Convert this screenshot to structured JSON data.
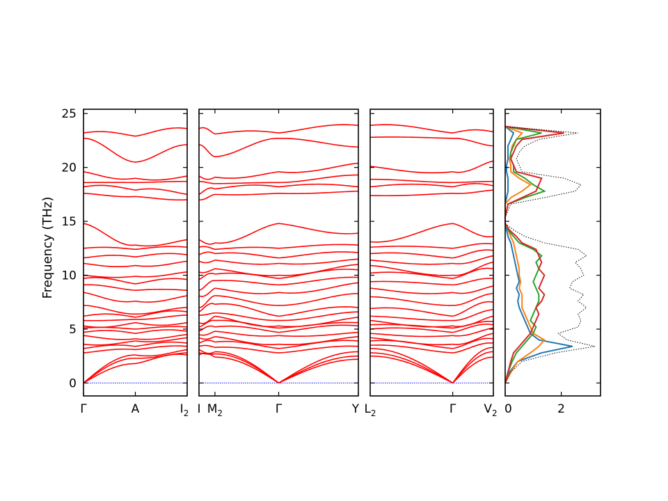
{
  "chart_data": {
    "type": "line",
    "ylabel": "Frequency (THz)",
    "ylim": [
      -1.2,
      25.4
    ],
    "yticks": [
      0,
      5,
      10,
      15,
      20,
      25
    ],
    "colors": {
      "band": "#ff0000",
      "zero_line": "#0000ff",
      "total_dos": "#000000",
      "pdos": [
        "#1f77b4",
        "#ff7f0e",
        "#2ca02c",
        "#d62728"
      ]
    },
    "band_panels": [
      {
        "segments": [
          {
            "from": "Γ",
            "to": "A",
            "tick_base": "Γ",
            "tick_sub": ""
          },
          {
            "from": "A",
            "to": "I",
            "tick_base": "A",
            "tick_sub": ""
          }
        ],
        "end_tick": {
          "base": "I",
          "sub": "2"
        },
        "band_values_at_labels": {
          "Γ": [
            0,
            0,
            0,
            2.8,
            3.2,
            3.6,
            4.4,
            4.7,
            5.1,
            5.3,
            5.8,
            6.2,
            7.2,
            8.4,
            9.1,
            9.7,
            10.0,
            11.1,
            11.6,
            12.5,
            14.8,
            17.6,
            18.2,
            18.6,
            19.6,
            22.7,
            23.2
          ],
          "A": [
            1.8,
            2.3,
            2.6,
            3.1,
            3.4,
            3.9,
            4.1,
            4.6,
            5.0,
            5.6,
            5.9,
            6.1,
            6.4,
            7.6,
            8.6,
            9.2,
            9.9,
            10.9,
            11.7,
            12.4,
            12.8,
            17.3,
            17.9,
            18.6,
            19.0,
            20.5,
            22.9
          ],
          "I": [
            2.6,
            2.8,
            3.1,
            3.4,
            3.7,
            4.2,
            4.5,
            4.8,
            5.2,
            5.6,
            6.3,
            6.6,
            7.0,
            8.1,
            8.6,
            9.6,
            10.3,
            11.3,
            11.9,
            12.6,
            13.3,
            17.0,
            17.5,
            18.7,
            19.2,
            22.1,
            23.6
          ]
        }
      },
      {
        "segments": [
          {
            "from": "I",
            "to": "M",
            "tick_base": "I",
            "tick_sub": ""
          },
          {
            "from": "M",
            "to": "Γ",
            "tick_base": "M",
            "tick_sub": "2"
          },
          {
            "from": "Γ",
            "to": "Y",
            "tick_base": "Γ",
            "tick_sub": ""
          }
        ],
        "end_tick": {
          "base": "Y",
          "sub": ""
        },
        "band_values_at_labels": {
          "I": [
            2.6,
            2.8,
            3.1,
            3.4,
            3.7,
            4.2,
            4.5,
            4.8,
            5.2,
            5.6,
            6.3,
            6.6,
            7.0,
            8.1,
            8.6,
            9.6,
            10.3,
            11.3,
            11.9,
            12.6,
            13.3,
            17.0,
            17.5,
            18.7,
            19.2,
            22.1,
            23.6
          ],
          "M": [
            2.4,
            2.7,
            2.9,
            3.3,
            3.8,
            4.3,
            4.8,
            5.2,
            5.8,
            6.2,
            6.5,
            7.3,
            8.1,
            8.8,
            9.5,
            10.1,
            10.6,
            11.4,
            12.0,
            12.4,
            13.0,
            17.5,
            18.0,
            18.5,
            19.1,
            21.0,
            23.1
          ],
          "Γ": [
            0,
            0,
            0,
            2.8,
            3.2,
            3.6,
            4.4,
            4.7,
            5.1,
            5.3,
            5.8,
            6.2,
            7.2,
            8.4,
            9.1,
            9.7,
            10.0,
            11.1,
            11.6,
            12.5,
            14.8,
            17.6,
            18.2,
            18.6,
            19.6,
            22.7,
            23.2
          ],
          "Y": [
            2.2,
            2.5,
            2.9,
            3.4,
            3.9,
            4.3,
            4.7,
            5.3,
            5.6,
            6.1,
            6.6,
            7.0,
            8.3,
            9.3,
            9.8,
            10.5,
            11.0,
            11.5,
            12.1,
            12.8,
            13.9,
            17.8,
            18.2,
            19.3,
            20.4,
            21.9,
            23.9
          ]
        }
      },
      {
        "segments": [
          {
            "from": "L",
            "to": "Γ",
            "tick_base": "L",
            "tick_sub": "2"
          },
          {
            "from": "Γ",
            "to": "V",
            "tick_base": "Γ",
            "tick_sub": ""
          }
        ],
        "end_tick": {
          "base": "V",
          "sub": "2"
        },
        "band_values_at_labels": {
          "L": [
            2.5,
            2.8,
            3.2,
            3.5,
            3.9,
            4.2,
            4.6,
            5.0,
            5.4,
            5.8,
            6.2,
            6.9,
            8.0,
            8.8,
            9.4,
            10.2,
            10.9,
            11.4,
            12.0,
            12.6,
            13.1,
            17.4,
            18.2,
            18.9,
            20.1,
            22.8,
            23.9
          ],
          "Γ": [
            0,
            0,
            0,
            2.8,
            3.2,
            3.6,
            4.4,
            4.7,
            5.1,
            5.3,
            5.8,
            6.2,
            7.2,
            8.4,
            9.1,
            9.7,
            10.0,
            11.1,
            11.6,
            12.5,
            14.8,
            17.6,
            18.2,
            18.6,
            19.6,
            22.7,
            23.2
          ],
          "V": [
            2.4,
            2.9,
            3.3,
            3.7,
            4.1,
            4.6,
            5.1,
            5.4,
            5.7,
            6.2,
            6.8,
            7.5,
            8.3,
            9.0,
            9.7,
            10.6,
            11.2,
            11.8,
            12.3,
            12.9,
            13.6,
            17.9,
            18.3,
            18.7,
            20.6,
            22.0,
            23.3
          ]
        }
      }
    ],
    "dos_panel": {
      "xlim": [
        0,
        3.4
      ],
      "xticks": [
        0,
        2
      ],
      "ylim": [
        -1.2,
        25.4
      ],
      "frequency_thz": [
        0.0,
        1.0,
        2.0,
        2.8,
        3.4,
        4.0,
        4.6,
        5.2,
        5.8,
        6.4,
        7.0,
        7.6,
        8.2,
        8.8,
        9.4,
        10.0,
        10.6,
        11.2,
        11.8,
        12.4,
        13.0,
        13.6,
        14.2,
        14.8,
        15.4,
        16.6,
        17.2,
        17.8,
        18.4,
        19.0,
        19.6,
        20.2,
        20.8,
        21.4,
        22.0,
        22.6,
        23.2,
        23.8
      ],
      "series": [
        {
          "values": [
            0.0,
            0.15,
            0.45,
            1.3,
            2.4,
            1.2,
            0.9,
            0.8,
            0.7,
            0.6,
            0.5,
            0.45,
            0.5,
            0.4,
            0.5,
            0.45,
            0.4,
            0.35,
            0.3,
            0.25,
            0.2,
            0.1,
            0.05,
            0.0,
            0.0,
            0.0,
            0.05,
            0.1,
            0.1,
            0.1,
            0.05,
            0.05,
            0.1,
            0.1,
            0.1,
            0.2,
            0.3,
            0.0
          ]
        },
        {
          "values": [
            0.0,
            0.2,
            0.45,
            0.9,
            1.2,
            1.4,
            1.0,
            0.9,
            0.8,
            0.7,
            0.6,
            0.6,
            0.6,
            0.5,
            0.55,
            0.5,
            0.5,
            0.45,
            0.4,
            0.35,
            0.3,
            0.2,
            0.1,
            0.0,
            0.0,
            0.0,
            0.2,
            0.6,
            0.9,
            0.5,
            0.2,
            0.2,
            0.15,
            0.2,
            0.25,
            0.4,
            0.6,
            0.0
          ]
        },
        {
          "values": [
            0.0,
            0.1,
            0.25,
            0.4,
            0.6,
            0.8,
            1.0,
            1.1,
            0.9,
            1.0,
            1.1,
            1.2,
            1.2,
            1.1,
            1.0,
            1.1,
            1.2,
            1.1,
            1.3,
            1.0,
            0.5,
            0.3,
            0.1,
            0.0,
            0.0,
            0.1,
            0.7,
            1.4,
            1.0,
            0.7,
            0.3,
            0.3,
            0.2,
            0.2,
            0.3,
            0.4,
            1.3,
            0.0
          ]
        },
        {
          "values": [
            0.0,
            0.1,
            0.2,
            0.3,
            0.5,
            0.7,
            0.9,
            1.0,
            1.1,
            1.2,
            1.1,
            1.3,
            1.4,
            1.2,
            1.3,
            1.4,
            1.2,
            1.3,
            1.2,
            1.1,
            0.6,
            0.4,
            0.15,
            0.0,
            0.0,
            0.1,
            0.6,
            1.1,
            1.2,
            1.3,
            0.4,
            0.3,
            0.2,
            0.3,
            0.4,
            0.6,
            2.1,
            0.0
          ]
        },
        {
          "values": [
            0.0,
            0.2,
            0.6,
            1.8,
            3.2,
            2.2,
            1.9,
            2.6,
            2.7,
            2.6,
            2.9,
            2.6,
            2.8,
            2.3,
            2.4,
            2.8,
            2.7,
            2.5,
            2.9,
            2.6,
            1.4,
            0.7,
            0.3,
            0.0,
            0.0,
            0.2,
            1.4,
            2.5,
            2.7,
            2.1,
            0.6,
            0.5,
            0.4,
            0.5,
            0.7,
            1.2,
            2.6,
            0.0
          ]
        }
      ]
    }
  }
}
